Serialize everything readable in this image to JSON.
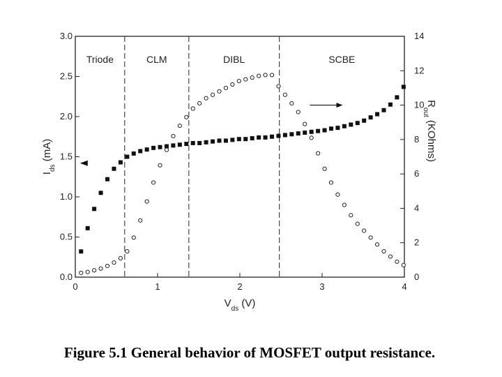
{
  "chart_data": {
    "type": "scatter",
    "x_axis": {
      "label_main": "V",
      "label_sub": "ds",
      "label_unit": " (V)",
      "range": [
        0,
        4
      ],
      "ticks": [
        0,
        1,
        2,
        3,
        4
      ],
      "tick_labels": [
        "0",
        "1",
        "2",
        "3",
        "4"
      ]
    },
    "y_left_axis": {
      "label_main": "I",
      "label_sub": "ds",
      "label_unit": " (mA)",
      "range": [
        0,
        3.0
      ],
      "ticks": [
        0,
        0.5,
        1.0,
        1.5,
        2.0,
        2.5,
        3.0
      ],
      "tick_labels": [
        "0.0",
        "0.5",
        "1.0",
        "1.5",
        "2.0",
        "2.5",
        "3.0"
      ]
    },
    "y_right_axis": {
      "label_main": "R",
      "label_sub": "out",
      "label_unit": " (KOhms)",
      "range": [
        0,
        14
      ],
      "ticks": [
        0,
        2,
        4,
        6,
        8,
        10,
        12,
        14
      ],
      "tick_labels": [
        "0",
        "2",
        "4",
        "6",
        "8",
        "10",
        "12",
        "14"
      ]
    },
    "regions": [
      {
        "label": "Triode",
        "boundary": 0.6
      },
      {
        "label": "CLM",
        "boundary": 1.38
      },
      {
        "label": "DIBL",
        "boundary": 2.48
      },
      {
        "label": "SCBE",
        "boundary": null
      }
    ],
    "series": [
      {
        "marker": "filled-square",
        "axis": "left",
        "x": [
          0.07,
          0.15,
          0.23,
          0.31,
          0.39,
          0.47,
          0.55,
          0.63,
          0.71,
          0.79,
          0.87,
          0.95,
          1.03,
          1.11,
          1.19,
          1.27,
          1.35,
          1.43,
          1.51,
          1.59,
          1.67,
          1.75,
          1.83,
          1.91,
          1.99,
          2.07,
          2.15,
          2.23,
          2.31,
          2.39,
          2.47,
          2.55,
          2.63,
          2.71,
          2.79,
          2.87,
          2.95,
          3.03,
          3.11,
          3.19,
          3.27,
          3.35,
          3.43,
          3.51,
          3.59,
          3.67,
          3.75,
          3.83,
          3.91,
          3.99
        ],
        "y": [
          0.32,
          0.61,
          0.85,
          1.05,
          1.22,
          1.35,
          1.43,
          1.5,
          1.54,
          1.57,
          1.59,
          1.61,
          1.62,
          1.63,
          1.64,
          1.65,
          1.66,
          1.67,
          1.67,
          1.68,
          1.69,
          1.7,
          1.7,
          1.71,
          1.72,
          1.72,
          1.73,
          1.74,
          1.74,
          1.75,
          1.76,
          1.77,
          1.78,
          1.79,
          1.8,
          1.81,
          1.82,
          1.83,
          1.85,
          1.86,
          1.88,
          1.9,
          1.92,
          1.95,
          1.99,
          2.03,
          2.08,
          2.15,
          2.24,
          2.37
        ]
      },
      {
        "marker": "open-circle",
        "axis": "right",
        "x": [
          0.07,
          0.15,
          0.23,
          0.31,
          0.39,
          0.47,
          0.55,
          0.63,
          0.71,
          0.79,
          0.87,
          0.95,
          1.03,
          1.11,
          1.19,
          1.27,
          1.35,
          1.43,
          1.51,
          1.59,
          1.67,
          1.75,
          1.83,
          1.91,
          1.99,
          2.07,
          2.15,
          2.23,
          2.31,
          2.39,
          2.47,
          2.55,
          2.63,
          2.71,
          2.79,
          2.87,
          2.95,
          3.03,
          3.11,
          3.19,
          3.27,
          3.35,
          3.43,
          3.51,
          3.59,
          3.67,
          3.75,
          3.83,
          3.91,
          3.99
        ],
        "y": [
          0.25,
          0.3,
          0.4,
          0.5,
          0.65,
          0.85,
          1.1,
          1.5,
          2.3,
          3.3,
          4.4,
          5.5,
          6.5,
          7.4,
          8.2,
          8.8,
          9.3,
          9.8,
          10.1,
          10.4,
          10.6,
          10.8,
          11.0,
          11.2,
          11.4,
          11.5,
          11.6,
          11.7,
          11.75,
          11.75,
          11.1,
          10.6,
          10.1,
          9.6,
          8.9,
          8.1,
          7.2,
          6.3,
          5.5,
          4.8,
          4.2,
          3.6,
          3.1,
          2.7,
          2.3,
          1.9,
          1.5,
          1.2,
          0.9,
          0.7
        ]
      }
    ],
    "arrows": [
      {
        "direction": "left",
        "x": 0.1,
        "y": 1.42,
        "axis": "left"
      },
      {
        "direction": "right",
        "x_from": 2.85,
        "x_to": 3.25,
        "y": 10.0,
        "axis": "right"
      }
    ]
  },
  "caption": "Figure 5.1 General behavior of MOSFET output resistance."
}
